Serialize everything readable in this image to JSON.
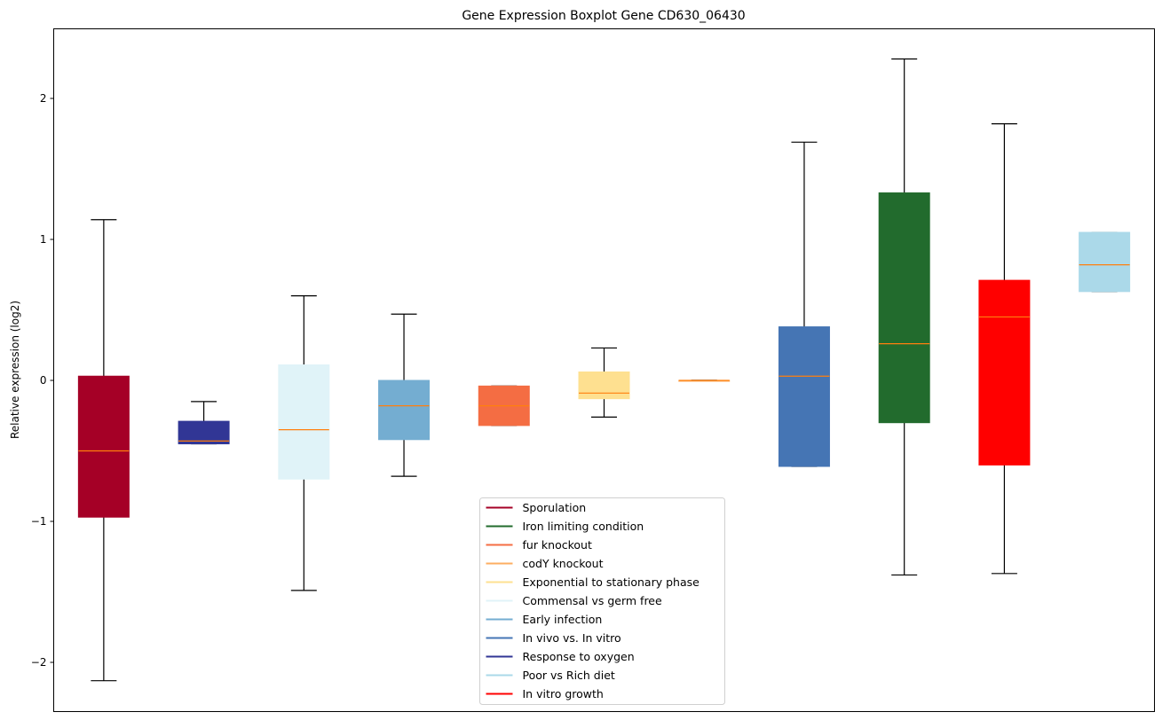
{
  "chart_data": {
    "type": "boxplot",
    "title": "Gene Expression Boxplot Gene CD630_06430",
    "xlabel": "",
    "ylabel": "Relative expression (log2)",
    "ylim": [
      -2.32,
      2.48
    ],
    "yticks": [
      -2,
      -1,
      0,
      1,
      2
    ],
    "ytick_labels": [
      "−2",
      "−1",
      "0",
      "1",
      "2"
    ],
    "grid": false,
    "legend_placement": "lower-center",
    "median_color": "#ff7f0e",
    "series": [
      {
        "name": "Sporulation",
        "color": "#a50026",
        "whisker_low": -2.13,
        "q1": -0.97,
        "median": -0.5,
        "q3": 0.03,
        "whisker_high": 1.14
      },
      {
        "name": "Response to oxygen",
        "color": "#313695",
        "whisker_low": -0.45,
        "q1": -0.45,
        "median": -0.43,
        "q3": -0.29,
        "whisker_high": -0.15
      },
      {
        "name": "Commensal vs germ free",
        "color": "#e0f3f8",
        "whisker_low": -1.49,
        "q1": -0.7,
        "median": -0.35,
        "q3": 0.11,
        "whisker_high": 0.6
      },
      {
        "name": "Early infection",
        "color": "#74add1",
        "whisker_low": -0.68,
        "q1": -0.42,
        "median": -0.18,
        "q3": 0.0,
        "whisker_high": 0.47
      },
      {
        "name": "fur knockout",
        "color": "#f46d43",
        "whisker_low": -0.32,
        "q1": -0.32,
        "median": -0.18,
        "q3": -0.04,
        "whisker_high": -0.04
      },
      {
        "name": "Exponential to stationary phase",
        "color": "#fee090",
        "whisker_low": -0.26,
        "q1": -0.13,
        "median": -0.09,
        "q3": 0.06,
        "whisker_high": 0.23
      },
      {
        "name": "codY knockout",
        "color": "#fdae61",
        "whisker_low": 0.0,
        "q1": 0.0,
        "median": 0.0,
        "q3": 0.0,
        "whisker_high": 0.0
      },
      {
        "name": "In vivo vs. In vitro",
        "color": "#4575b4",
        "whisker_low": -0.61,
        "q1": -0.61,
        "median": 0.03,
        "q3": 0.38,
        "whisker_high": 1.69
      },
      {
        "name": "Iron limiting condition",
        "color": "#226b2d",
        "whisker_low": -1.38,
        "q1": -0.3,
        "median": 0.26,
        "q3": 1.33,
        "whisker_high": 2.28
      },
      {
        "name": "In vitro growth",
        "color": "#ff0000",
        "whisker_low": -1.37,
        "q1": -0.6,
        "median": 0.45,
        "q3": 0.71,
        "whisker_high": 1.82
      },
      {
        "name": "Poor vs Rich diet",
        "color": "#abd9e9",
        "whisker_low": 0.63,
        "q1": 0.63,
        "median": 0.82,
        "q3": 1.05,
        "whisker_high": 1.05
      }
    ],
    "legend": [
      {
        "label": "Sporulation",
        "color": "#a50026"
      },
      {
        "label": "Iron limiting condition",
        "color": "#226b2d"
      },
      {
        "label": "fur knockout",
        "color": "#f46d43"
      },
      {
        "label": "codY knockout",
        "color": "#fdae61"
      },
      {
        "label": "Exponential to stationary phase",
        "color": "#fee090"
      },
      {
        "label": "Commensal vs germ free",
        "color": "#e0f3f8"
      },
      {
        "label": "Early infection",
        "color": "#74add1"
      },
      {
        "label": "In vivo vs. In vitro",
        "color": "#4575b4"
      },
      {
        "label": "Response to oxygen",
        "color": "#313695"
      },
      {
        "label": "Poor vs Rich diet",
        "color": "#abd9e9"
      },
      {
        "label": "In vitro growth",
        "color": "#ff0000"
      }
    ]
  }
}
